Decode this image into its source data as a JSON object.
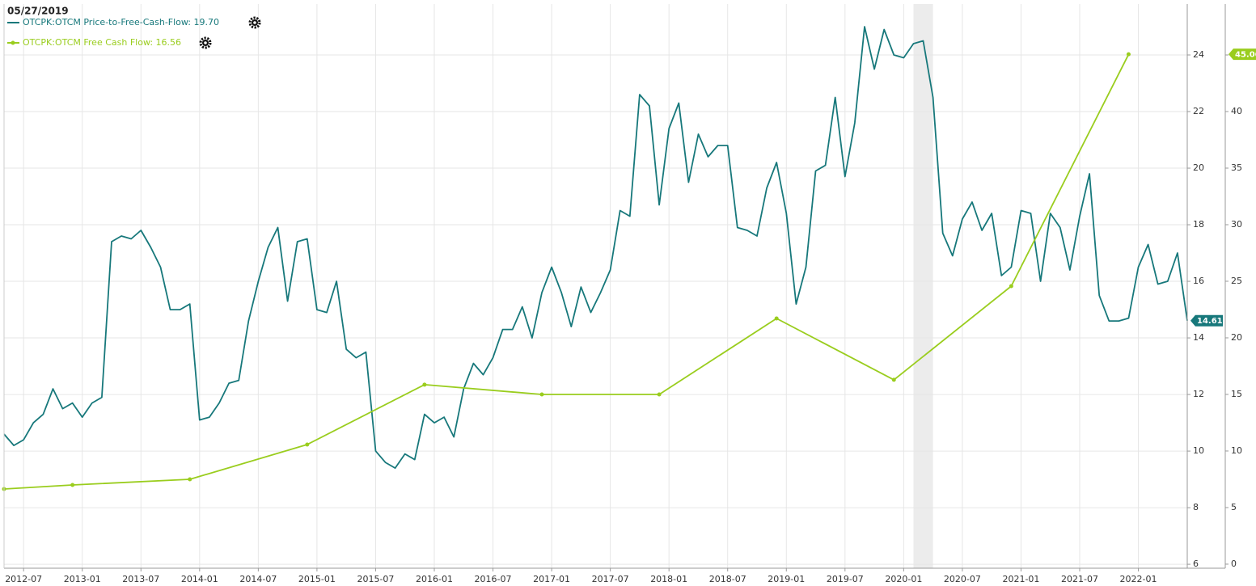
{
  "chart_data": {
    "type": "line",
    "date_header": "05/27/2019",
    "xlim": [
      "2012-05",
      "2022-06"
    ],
    "xticks": [
      "2012-07",
      "2013-01",
      "2013-07",
      "2014-01",
      "2014-07",
      "2015-01",
      "2015-07",
      "2016-01",
      "2016-07",
      "2017-01",
      "2017-07",
      "2018-01",
      "2018-07",
      "2019-01",
      "2019-07",
      "2020-01",
      "2020-07",
      "2021-01",
      "2021-07",
      "2022-01"
    ],
    "ylim": [
      5.86,
      25.8
    ],
    "yticks": [
      6,
      8,
      10,
      12,
      14,
      16,
      18,
      20,
      22,
      24
    ],
    "y2lim": [
      -0.36,
      49.5
    ],
    "y2ticks": [
      0,
      5,
      10,
      15,
      20,
      25,
      30,
      35,
      40,
      45
    ],
    "grid": true,
    "recession": [
      "2020-02",
      "2020-04"
    ],
    "series": [
      {
        "name": "OTCPK:OTCM Price-to-Free-Cash-Flow: 19.70",
        "color": "#17787b",
        "axis": "y",
        "x": [
          "2012-05",
          "2012-06",
          "2012-07",
          "2012-08",
          "2012-09",
          "2012-10",
          "2012-11",
          "2012-12",
          "2013-01",
          "2013-02",
          "2013-03",
          "2013-04",
          "2013-05",
          "2013-06",
          "2013-07",
          "2013-08",
          "2013-09",
          "2013-10",
          "2013-11",
          "2013-12",
          "2014-01",
          "2014-02",
          "2014-03",
          "2014-04",
          "2014-05",
          "2014-06",
          "2014-07",
          "2014-08",
          "2014-09",
          "2014-10",
          "2014-11",
          "2014-12",
          "2015-01",
          "2015-02",
          "2015-03",
          "2015-04",
          "2015-05",
          "2015-06",
          "2015-07",
          "2015-08",
          "2015-09",
          "2015-10",
          "2015-11",
          "2015-12",
          "2016-01",
          "2016-02",
          "2016-03",
          "2016-04",
          "2016-05",
          "2016-06",
          "2016-07",
          "2016-08",
          "2016-09",
          "2016-10",
          "2016-11",
          "2016-12",
          "2017-01",
          "2017-02",
          "2017-03",
          "2017-04",
          "2017-05",
          "2017-06",
          "2017-07",
          "2017-08",
          "2017-09",
          "2017-10",
          "2017-11",
          "2017-12",
          "2018-01",
          "2018-02",
          "2018-03",
          "2018-04",
          "2018-05",
          "2018-06",
          "2018-07",
          "2018-08",
          "2018-09",
          "2018-10",
          "2018-11",
          "2018-12",
          "2019-01",
          "2019-02",
          "2019-03",
          "2019-04",
          "2019-05",
          "2019-06",
          "2019-07",
          "2019-08",
          "2019-09",
          "2019-10",
          "2019-11",
          "2019-12",
          "2020-01",
          "2020-02",
          "2020-03",
          "2020-04",
          "2020-05",
          "2020-06",
          "2020-07",
          "2020-08",
          "2020-09",
          "2020-10",
          "2020-11",
          "2020-12",
          "2021-01",
          "2021-02",
          "2021-03",
          "2021-04",
          "2021-05",
          "2021-06",
          "2021-07",
          "2021-08",
          "2021-09",
          "2021-10",
          "2021-11",
          "2021-12",
          "2022-01",
          "2022-02",
          "2022-03",
          "2022-04",
          "2022-05",
          "2022-06"
        ],
        "values": [
          10.6,
          10.2,
          10.4,
          11.0,
          11.3,
          12.2,
          11.5,
          11.7,
          11.2,
          11.7,
          11.9,
          17.4,
          17.6,
          17.5,
          17.8,
          17.2,
          16.5,
          15.0,
          15.0,
          15.2,
          11.1,
          11.2,
          11.7,
          12.4,
          12.5,
          14.6,
          16.0,
          17.2,
          17.9,
          15.3,
          17.4,
          17.5,
          15.0,
          14.9,
          16.0,
          13.6,
          13.3,
          13.5,
          10.0,
          9.6,
          9.4,
          9.9,
          9.7,
          11.3,
          11.0,
          11.2,
          10.5,
          12.2,
          13.1,
          12.7,
          13.3,
          14.3,
          14.3,
          15.1,
          14.0,
          15.6,
          16.5,
          15.6,
          14.4,
          15.8,
          14.9,
          15.6,
          16.4,
          18.5,
          18.3,
          22.6,
          22.2,
          18.7,
          21.4,
          22.3,
          19.5,
          21.2,
          20.4,
          20.8,
          20.8,
          17.9,
          17.8,
          17.6,
          19.3,
          20.2,
          18.4,
          15.2,
          16.5,
          19.9,
          20.1,
          22.5,
          19.7,
          21.6,
          25.0,
          23.5,
          24.9,
          24.0,
          23.9,
          24.4,
          24.5,
          22.5,
          17.7,
          16.9,
          18.2,
          18.8,
          17.8,
          18.4,
          16.2,
          16.5,
          18.5,
          18.4,
          16.0,
          18.4,
          17.9,
          16.4,
          18.3,
          19.8,
          15.5,
          14.6,
          14.6,
          14.7,
          16.5,
          17.3,
          15.9,
          16.0,
          17.0,
          14.61
        ]
      },
      {
        "name": "OTCPK:OTCM Free Cash Flow: 16.56",
        "color": "#9acd1e",
        "axis": "y2",
        "markers": true,
        "x": [
          "2012-05",
          "2012-12",
          "2013-12",
          "2014-12",
          "2015-12",
          "2016-12",
          "2017-12",
          "2018-12",
          "2019-12",
          "2020-12",
          "2021-12"
        ],
        "values": [
          6.64,
          7.0,
          7.5,
          10.57,
          15.86,
          15.0,
          15.0,
          21.71,
          16.29,
          24.57,
          45.06
        ]
      }
    ]
  }
}
